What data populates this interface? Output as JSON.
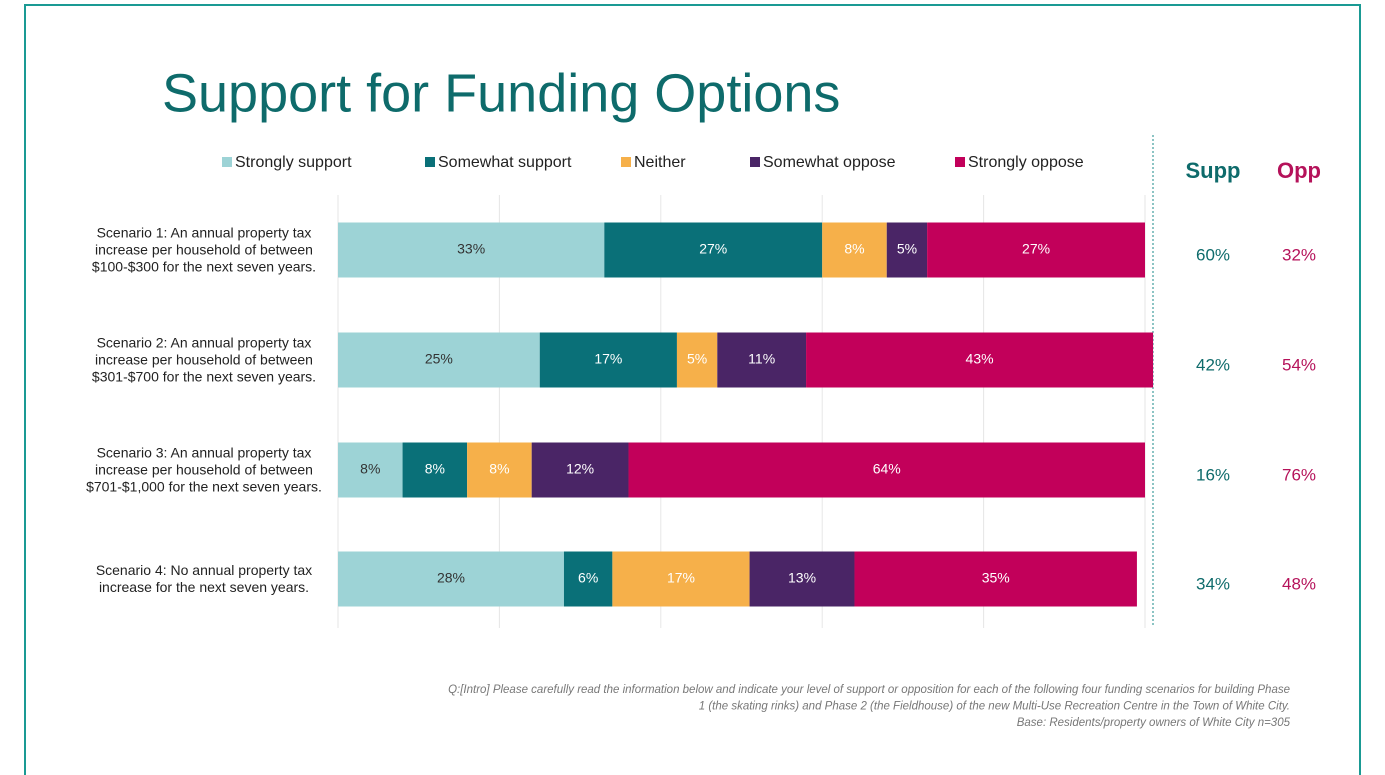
{
  "chart_data": {
    "type": "stacked_barh",
    "title": "Support for Funding Options",
    "categories": [
      "Scenario 1: An annual property tax increase per household of between $100-$300 for the next seven years.",
      "Scenario 2: An annual property tax increase per household of between $301-$700 for the next seven years.",
      "Scenario 3: An annual property tax increase per household of between $701-$1,000 for the next seven years.",
      "Scenario 4: No annual property tax increase for the next seven years."
    ],
    "series": [
      {
        "name": "Strongly support",
        "color": "#9dd3d6",
        "values": [
          33,
          25,
          8,
          28
        ],
        "value_labels": [
          "33%",
          "25%",
          "8%",
          "28%"
        ]
      },
      {
        "name": "Somewhat support",
        "color": "#0a7078",
        "values": [
          27,
          17,
          8,
          6
        ],
        "value_labels": [
          "27%",
          "17%",
          "8%",
          "6%"
        ]
      },
      {
        "name": "Neither",
        "color": "#f6b04a",
        "values": [
          8,
          5,
          8,
          17
        ],
        "value_labels": [
          "8%",
          "5%",
          "8%",
          "17%"
        ]
      },
      {
        "name": "Somewhat oppose",
        "color": "#4a2566",
        "values": [
          5,
          11,
          12,
          13
        ],
        "value_labels": [
          "5%",
          "11%",
          "12%",
          "13%"
        ]
      },
      {
        "name": "Strongly oppose",
        "color": "#c2005a",
        "values": [
          27,
          43,
          64,
          35
        ],
        "value_labels": [
          "27%",
          "43%",
          "64%",
          "35%"
        ]
      }
    ],
    "xlim": [
      0,
      100
    ],
    "xticks": [
      0,
      20,
      40,
      60,
      80,
      100
    ],
    "grid": true,
    "legend": "top",
    "summary": [
      {
        "name": "Supp",
        "color": "#0e6b6b",
        "values": [
          60,
          42,
          16,
          34
        ],
        "value_labels": [
          "60%",
          "42%",
          "16%",
          "34%"
        ]
      },
      {
        "name": "Opp",
        "color": "#b5125a",
        "values": [
          32,
          54,
          76,
          48
        ],
        "value_labels": [
          "32%",
          "54%",
          "76%",
          "48%"
        ]
      }
    ],
    "notes": [
      "Q:[Intro] Please carefully read the information below and indicate your level of support or opposition for each of the following four funding scenarios for building Phase",
      "1 (the skating rinks) and Phase 2 (the Fieldhouse) of the new Multi-Use Recreation Centre in the Town of White City.",
      "Base: Residents/property owners of White City n=305"
    ]
  }
}
